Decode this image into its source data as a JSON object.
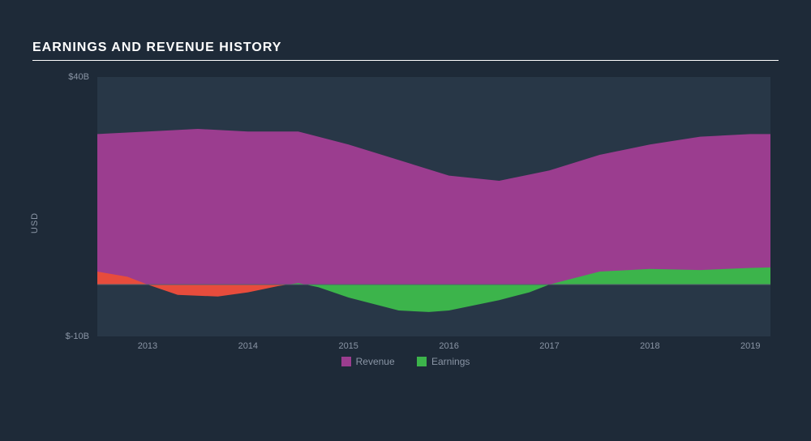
{
  "chart": {
    "type": "area",
    "title": "EARNINGS AND REVENUE HISTORY",
    "background_color": "#1e2a38",
    "plot_background_color": "#283747",
    "title_color": "#ffffff",
    "title_fontsize": 16,
    "axis_label_color": "#8a95a5",
    "axis_label_fontsize": 11,
    "ylabel": "USD",
    "yticks": [
      {
        "value": 40,
        "label": "$40B"
      },
      {
        "value": -10,
        "label": "$-10B"
      }
    ],
    "ylim": [
      -10,
      40
    ],
    "xticks": [
      2013,
      2014,
      2015,
      2016,
      2017,
      2018,
      2019
    ],
    "xlim": [
      2012.5,
      2019.2
    ],
    "zero_line_color": "#555f6d",
    "series": [
      {
        "name": "Revenue",
        "color": "#9b3d8f",
        "points": [
          {
            "x": 2012.5,
            "y": 29
          },
          {
            "x": 2013.0,
            "y": 29.5
          },
          {
            "x": 2013.5,
            "y": 30
          },
          {
            "x": 2014.0,
            "y": 29.5
          },
          {
            "x": 2014.5,
            "y": 29.5
          },
          {
            "x": 2015.0,
            "y": 27
          },
          {
            "x": 2015.5,
            "y": 24
          },
          {
            "x": 2016.0,
            "y": 21
          },
          {
            "x": 2016.5,
            "y": 20
          },
          {
            "x": 2017.0,
            "y": 22
          },
          {
            "x": 2017.5,
            "y": 25
          },
          {
            "x": 2018.0,
            "y": 27
          },
          {
            "x": 2018.5,
            "y": 28.5
          },
          {
            "x": 2019.0,
            "y": 29
          },
          {
            "x": 2019.2,
            "y": 29
          }
        ]
      },
      {
        "name": "Earnings",
        "positive_color": "#3cb44b",
        "negative_color": "#e74c3c",
        "points": [
          {
            "x": 2012.5,
            "y": 2.5
          },
          {
            "x": 2012.8,
            "y": 1.5
          },
          {
            "x": 2013.0,
            "y": 0
          },
          {
            "x": 2013.3,
            "y": -2
          },
          {
            "x": 2013.7,
            "y": -2.3
          },
          {
            "x": 2014.0,
            "y": -1.5
          },
          {
            "x": 2014.3,
            "y": -0.3
          },
          {
            "x": 2014.5,
            "y": 0.3
          },
          {
            "x": 2014.7,
            "y": -0.5
          },
          {
            "x": 2015.0,
            "y": -2.5
          },
          {
            "x": 2015.5,
            "y": -5
          },
          {
            "x": 2015.8,
            "y": -5.3
          },
          {
            "x": 2016.0,
            "y": -5
          },
          {
            "x": 2016.5,
            "y": -3
          },
          {
            "x": 2016.8,
            "y": -1.5
          },
          {
            "x": 2017.0,
            "y": 0
          },
          {
            "x": 2017.3,
            "y": 1.5
          },
          {
            "x": 2017.5,
            "y": 2.5
          },
          {
            "x": 2018.0,
            "y": 3
          },
          {
            "x": 2018.5,
            "y": 2.8
          },
          {
            "x": 2019.0,
            "y": 3.2
          },
          {
            "x": 2019.2,
            "y": 3.3
          }
        ]
      }
    ],
    "legend": {
      "items": [
        {
          "label": "Revenue",
          "color": "#9b3d8f"
        },
        {
          "label": "Earnings",
          "color": "#3cb44b"
        }
      ]
    }
  }
}
